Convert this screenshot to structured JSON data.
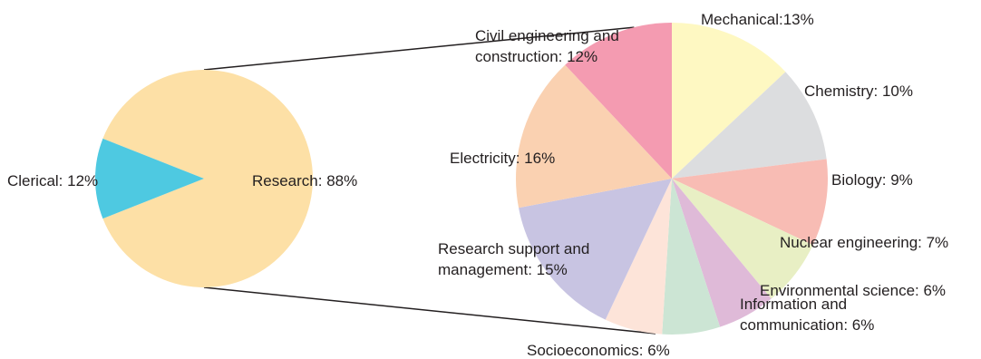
{
  "chart_data": [
    {
      "type": "pie",
      "title": "",
      "slices": [
        {
          "label": "Research: 88%",
          "name": "Research",
          "value": 88,
          "color": "#fde0a6"
        },
        {
          "label": "Clerical: 12%",
          "name": "Clerical",
          "value": 12,
          "color": "#4ec9e1"
        }
      ]
    },
    {
      "type": "pie",
      "title": "",
      "slices": [
        {
          "label": "Mechanical:13%",
          "name": "Mechanical",
          "value": 13,
          "color": "#fef8c2"
        },
        {
          "label": "Chemistry: 10%",
          "name": "Chemistry",
          "value": 10,
          "color": "#dcdddf"
        },
        {
          "label": "Biology: 9%",
          "name": "Biology",
          "value": 9,
          "color": "#f8bcb4"
        },
        {
          "label": "Nuclear engineering: 7%",
          "name": "Nuclear engineering",
          "value": 7,
          "color": "#e8efc4"
        },
        {
          "label": "Environmental science: 6%",
          "name": "Environmental science",
          "value": 6,
          "color": "#dfbad8"
        },
        {
          "label": "Information and|communication: 6%",
          "name": "Information and communication",
          "value": 6,
          "color": "#cce5d4"
        },
        {
          "label": "Socioeconomics: 6%",
          "name": "Socioeconomics",
          "value": 6,
          "color": "#fde4d9"
        },
        {
          "label": "Research support and|management: 15%",
          "name": "Research support and management",
          "value": 15,
          "color": "#c8c4e2"
        },
        {
          "label": "Electricity: 16%",
          "name": "Electricity",
          "value": 16,
          "color": "#fad1b1"
        },
        {
          "label": "Civil engineering and|construction: 12%",
          "name": "Civil engineering and construction",
          "value": 12,
          "color": "#f49bb1"
        }
      ]
    }
  ]
}
